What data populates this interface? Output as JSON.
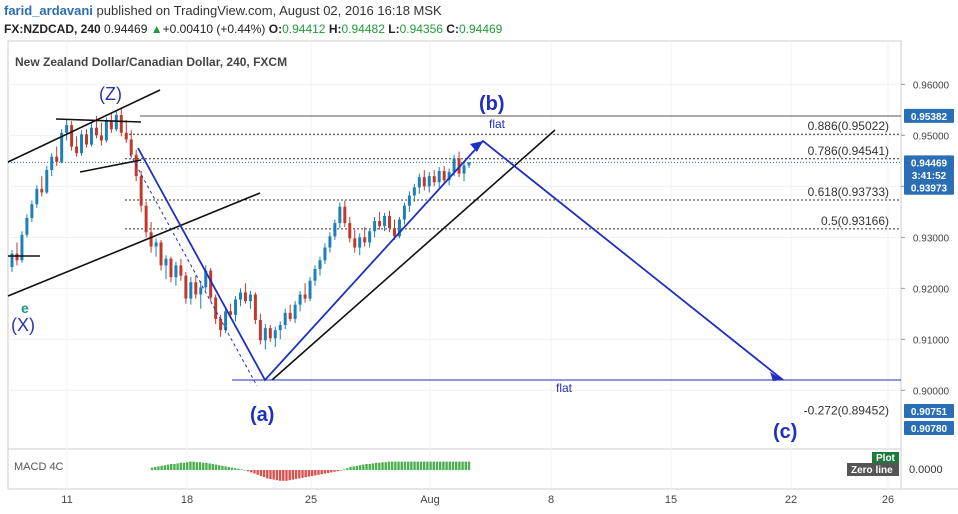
{
  "header": {
    "user": "farid_ardavani",
    "published": "published on TradingView.com, August 02, 2016 16:18 MSK",
    "symbol": "FX:NZDCAD, 240",
    "last": "0.94469",
    "change_arrow": "▲",
    "change": "+0.00410 (+0.44%)",
    "o_label": "O:",
    "o_value": "0.94412",
    "h_label": "H:",
    "h_value": "0.94482",
    "l_label": "L:",
    "l_value": "0.94356",
    "c_label": "C:",
    "c_value": "0.94469"
  },
  "chart_data": {
    "type": "candlestick",
    "title": "New Zealand Dollar/Canadian Dollar, 240, FXCM",
    "ylim": [
      0.8885,
      0.9685
    ],
    "y_ticks": [
      "0.96000",
      "0.95000",
      "0.94000",
      "0.93000",
      "0.92000",
      "0.91000",
      "0.90000"
    ],
    "x_ticks": [
      "11",
      "18",
      "25",
      "Aug",
      "8",
      "15",
      "22",
      "26"
    ],
    "price_badges": [
      {
        "label": "0.95382",
        "value": 0.95382,
        "color": "#2a6fb5"
      },
      {
        "label": "0.94469",
        "value": 0.94469,
        "color": "#2a6fb5"
      },
      {
        "label": "3:41:52",
        "value": 0.94225,
        "color": "#2a6fb5"
      },
      {
        "label": "0.93973",
        "value": 0.93973,
        "color": "#2a6fb5"
      },
      {
        "label": "0.90751",
        "value": 0.90751,
        "color": "#2a6fb5"
      },
      {
        "label": "0.90780",
        "value": 0.9078,
        "color": "#2a6fb5"
      }
    ],
    "fib_levels": [
      {
        "label": "0.886(0.95022)",
        "value": 0.95022
      },
      {
        "label": "0.786(0.94541)",
        "value": 0.94541
      },
      {
        "label": "0.618(0.93733)",
        "value": 0.93733
      },
      {
        "label": "0.5(0.93166)",
        "value": 0.93166
      },
      {
        "label": "-0.272(0.89452)",
        "value": 0.89452
      }
    ],
    "wave_labels": [
      "(Z)",
      "(b)",
      "(a)",
      "(c)",
      "(X)",
      "e"
    ],
    "flat_labels": [
      "flat",
      "flat"
    ],
    "macd": {
      "label": "MACD 4C",
      "axis_value": "0.0000",
      "plot_badge": "Plot",
      "zero_badge": "Zero line",
      "values": [
        0.4,
        0.5,
        0.6,
        0.7,
        0.8,
        0.9,
        1.0,
        1.0,
        1.1,
        1.2,
        1.2,
        1.3,
        1.4,
        1.4,
        1.3,
        1.3,
        1.2,
        1.2,
        1.1,
        1.0,
        0.9,
        0.8,
        0.7,
        0.6,
        0.5,
        0.4,
        0.3,
        0.2,
        0.1,
        0.0,
        -0.2,
        -0.4,
        -0.6,
        -0.8,
        -1.0,
        -1.2,
        -1.4,
        -1.5,
        -1.6,
        -1.7,
        -1.8,
        -1.8,
        -1.8,
        -1.7,
        -1.6,
        -1.5,
        -1.4,
        -1.3,
        -1.2,
        -1.1,
        -1.0,
        -0.9,
        -0.8,
        -0.7,
        -0.6,
        -0.5,
        -0.4,
        -0.3,
        -0.2,
        -0.1,
        0.1,
        0.3,
        0.5,
        0.6,
        0.7,
        0.8,
        0.9,
        1.0,
        1.0,
        1.1,
        1.2,
        1.2,
        1.3,
        1.3,
        1.4,
        1.4,
        1.4,
        1.4,
        1.4,
        1.4,
        1.4,
        1.4,
        1.4,
        1.4,
        1.4,
        1.4,
        1.4,
        1.4,
        1.4,
        1.4,
        1.4,
        1.4,
        1.4,
        1.4,
        1.4,
        1.4,
        1.4,
        1.4,
        1.4,
        1.4
      ],
      "colors": {
        "pos": "#4caf50",
        "neg": "#d9534f"
      }
    },
    "candles": [
      {
        "o": 0.9242,
        "h": 0.9275,
        "l": 0.9232,
        "c": 0.9268
      },
      {
        "o": 0.9268,
        "h": 0.929,
        "l": 0.9245,
        "c": 0.9255
      },
      {
        "o": 0.9255,
        "h": 0.9312,
        "l": 0.925,
        "c": 0.9305
      },
      {
        "o": 0.9305,
        "h": 0.9345,
        "l": 0.93,
        "c": 0.9338
      },
      {
        "o": 0.9338,
        "h": 0.9372,
        "l": 0.933,
        "c": 0.9365
      },
      {
        "o": 0.9365,
        "h": 0.9402,
        "l": 0.9358,
        "c": 0.9395
      },
      {
        "o": 0.9395,
        "h": 0.942,
        "l": 0.938,
        "c": 0.9388
      },
      {
        "o": 0.9388,
        "h": 0.944,
        "l": 0.9385,
        "c": 0.9432
      },
      {
        "o": 0.9432,
        "h": 0.9465,
        "l": 0.942,
        "c": 0.9458
      },
      {
        "o": 0.9458,
        "h": 0.9478,
        "l": 0.944,
        "c": 0.9448
      },
      {
        "o": 0.9448,
        "h": 0.9512,
        "l": 0.9445,
        "c": 0.9505
      },
      {
        "o": 0.9505,
        "h": 0.9532,
        "l": 0.949,
        "c": 0.952
      },
      {
        "o": 0.952,
        "h": 0.9528,
        "l": 0.947,
        "c": 0.9478
      },
      {
        "o": 0.9478,
        "h": 0.9498,
        "l": 0.9458,
        "c": 0.9465
      },
      {
        "o": 0.9465,
        "h": 0.951,
        "l": 0.946,
        "c": 0.9502
      },
      {
        "o": 0.9502,
        "h": 0.9512,
        "l": 0.9476,
        "c": 0.9482
      },
      {
        "o": 0.9482,
        "h": 0.9524,
        "l": 0.9478,
        "c": 0.9515
      },
      {
        "o": 0.9515,
        "h": 0.9538,
        "l": 0.9494,
        "c": 0.95
      },
      {
        "o": 0.95,
        "h": 0.9525,
        "l": 0.948,
        "c": 0.949
      },
      {
        "o": 0.949,
        "h": 0.9535,
        "l": 0.9486,
        "c": 0.9528
      },
      {
        "o": 0.9528,
        "h": 0.9545,
        "l": 0.9505,
        "c": 0.9512
      },
      {
        "o": 0.9512,
        "h": 0.9548,
        "l": 0.9508,
        "c": 0.954
      },
      {
        "o": 0.954,
        "h": 0.9555,
        "l": 0.9498,
        "c": 0.9505
      },
      {
        "o": 0.9505,
        "h": 0.953,
        "l": 0.9485,
        "c": 0.9492
      },
      {
        "o": 0.9492,
        "h": 0.951,
        "l": 0.9456,
        "c": 0.9462
      },
      {
        "o": 0.9462,
        "h": 0.9472,
        "l": 0.941,
        "c": 0.942
      },
      {
        "o": 0.942,
        "h": 0.943,
        "l": 0.935,
        "c": 0.9362
      },
      {
        "o": 0.9362,
        "h": 0.937,
        "l": 0.93,
        "c": 0.931
      },
      {
        "o": 0.931,
        "h": 0.933,
        "l": 0.927,
        "c": 0.9282
      },
      {
        "o": 0.9282,
        "h": 0.9298,
        "l": 0.9262,
        "c": 0.929
      },
      {
        "o": 0.929,
        "h": 0.9295,
        "l": 0.9235,
        "c": 0.9245
      },
      {
        "o": 0.9245,
        "h": 0.9265,
        "l": 0.9218,
        "c": 0.9258
      },
      {
        "o": 0.9258,
        "h": 0.9262,
        "l": 0.9212,
        "c": 0.9222
      },
      {
        "o": 0.9222,
        "h": 0.9252,
        "l": 0.9205,
        "c": 0.9245
      },
      {
        "o": 0.9245,
        "h": 0.9258,
        "l": 0.9215,
        "c": 0.9225
      },
      {
        "o": 0.9225,
        "h": 0.9232,
        "l": 0.917,
        "c": 0.918
      },
      {
        "o": 0.918,
        "h": 0.9222,
        "l": 0.9168,
        "c": 0.9212
      },
      {
        "o": 0.9212,
        "h": 0.9225,
        "l": 0.918,
        "c": 0.9188
      },
      {
        "o": 0.9188,
        "h": 0.9215,
        "l": 0.916,
        "c": 0.9202
      },
      {
        "o": 0.9202,
        "h": 0.9245,
        "l": 0.9195,
        "c": 0.9235
      },
      {
        "o": 0.9235,
        "h": 0.924,
        "l": 0.9175,
        "c": 0.9182
      },
      {
        "o": 0.9182,
        "h": 0.9188,
        "l": 0.913,
        "c": 0.914
      },
      {
        "o": 0.914,
        "h": 0.9148,
        "l": 0.9105,
        "c": 0.9118
      },
      {
        "o": 0.9118,
        "h": 0.9162,
        "l": 0.9112,
        "c": 0.9155
      },
      {
        "o": 0.9155,
        "h": 0.917,
        "l": 0.914,
        "c": 0.9148
      },
      {
        "o": 0.9148,
        "h": 0.9185,
        "l": 0.9135,
        "c": 0.9178
      },
      {
        "o": 0.9178,
        "h": 0.92,
        "l": 0.9165,
        "c": 0.9192
      },
      {
        "o": 0.9192,
        "h": 0.921,
        "l": 0.917,
        "c": 0.9175
      },
      {
        "o": 0.9175,
        "h": 0.9195,
        "l": 0.916,
        "c": 0.9188
      },
      {
        "o": 0.9188,
        "h": 0.9192,
        "l": 0.913,
        "c": 0.9138
      },
      {
        "o": 0.9138,
        "h": 0.915,
        "l": 0.909,
        "c": 0.9098
      },
      {
        "o": 0.9098,
        "h": 0.913,
        "l": 0.908,
        "c": 0.9122
      },
      {
        "o": 0.9122,
        "h": 0.9128,
        "l": 0.9095,
        "c": 0.9102
      },
      {
        "o": 0.9102,
        "h": 0.9125,
        "l": 0.9085,
        "c": 0.9118
      },
      {
        "o": 0.9118,
        "h": 0.9135,
        "l": 0.91,
        "c": 0.9128
      },
      {
        "o": 0.9128,
        "h": 0.916,
        "l": 0.912,
        "c": 0.9152
      },
      {
        "o": 0.9152,
        "h": 0.9168,
        "l": 0.9135,
        "c": 0.914
      },
      {
        "o": 0.914,
        "h": 0.9175,
        "l": 0.9132,
        "c": 0.9168
      },
      {
        "o": 0.9168,
        "h": 0.9195,
        "l": 0.9155,
        "c": 0.9188
      },
      {
        "o": 0.9188,
        "h": 0.921,
        "l": 0.9172,
        "c": 0.918
      },
      {
        "o": 0.918,
        "h": 0.9222,
        "l": 0.9175,
        "c": 0.9215
      },
      {
        "o": 0.9215,
        "h": 0.9245,
        "l": 0.9205,
        "c": 0.9238
      },
      {
        "o": 0.9238,
        "h": 0.9262,
        "l": 0.9225,
        "c": 0.9255
      },
      {
        "o": 0.9255,
        "h": 0.9288,
        "l": 0.9248,
        "c": 0.928
      },
      {
        "o": 0.928,
        "h": 0.931,
        "l": 0.927,
        "c": 0.9302
      },
      {
        "o": 0.9302,
        "h": 0.9335,
        "l": 0.9295,
        "c": 0.9328
      },
      {
        "o": 0.9328,
        "h": 0.9368,
        "l": 0.9318,
        "c": 0.936
      },
      {
        "o": 0.936,
        "h": 0.9372,
        "l": 0.932,
        "c": 0.9328
      },
      {
        "o": 0.9328,
        "h": 0.934,
        "l": 0.929,
        "c": 0.9298
      },
      {
        "o": 0.9298,
        "h": 0.9315,
        "l": 0.927,
        "c": 0.928
      },
      {
        "o": 0.928,
        "h": 0.9308,
        "l": 0.9265,
        "c": 0.93
      },
      {
        "o": 0.93,
        "h": 0.932,
        "l": 0.9282,
        "c": 0.929
      },
      {
        "o": 0.929,
        "h": 0.9318,
        "l": 0.928,
        "c": 0.9312
      },
      {
        "o": 0.9312,
        "h": 0.934,
        "l": 0.93,
        "c": 0.9332
      },
      {
        "o": 0.9332,
        "h": 0.935,
        "l": 0.9315,
        "c": 0.9322
      },
      {
        "o": 0.9322,
        "h": 0.9348,
        "l": 0.9312,
        "c": 0.9342
      },
      {
        "o": 0.9342,
        "h": 0.9352,
        "l": 0.931,
        "c": 0.9318
      },
      {
        "o": 0.9318,
        "h": 0.9335,
        "l": 0.9295,
        "c": 0.9302
      },
      {
        "o": 0.9302,
        "h": 0.934,
        "l": 0.9298,
        "c": 0.9335
      },
      {
        "o": 0.9335,
        "h": 0.9368,
        "l": 0.9325,
        "c": 0.9362
      },
      {
        "o": 0.9362,
        "h": 0.939,
        "l": 0.935,
        "c": 0.9382
      },
      {
        "o": 0.9382,
        "h": 0.9405,
        "l": 0.937,
        "c": 0.9398
      },
      {
        "o": 0.9398,
        "h": 0.9425,
        "l": 0.9385,
        "c": 0.9418
      },
      {
        "o": 0.9418,
        "h": 0.9432,
        "l": 0.9392,
        "c": 0.94
      },
      {
        "o": 0.94,
        "h": 0.9428,
        "l": 0.9388,
        "c": 0.942
      },
      {
        "o": 0.942,
        "h": 0.9432,
        "l": 0.94,
        "c": 0.9408
      },
      {
        "o": 0.9408,
        "h": 0.9438,
        "l": 0.9398,
        "c": 0.943
      },
      {
        "o": 0.943,
        "h": 0.944,
        "l": 0.9405,
        "c": 0.9412
      },
      {
        "o": 0.9412,
        "h": 0.9435,
        "l": 0.9402,
        "c": 0.9428
      },
      {
        "o": 0.9428,
        "h": 0.9462,
        "l": 0.942,
        "c": 0.9455
      },
      {
        "o": 0.9455,
        "h": 0.9468,
        "l": 0.9418,
        "c": 0.9425
      },
      {
        "o": 0.9425,
        "h": 0.945,
        "l": 0.941,
        "c": 0.9441
      },
      {
        "o": 0.9441,
        "h": 0.9448,
        "l": 0.9436,
        "c": 0.9447
      }
    ]
  }
}
